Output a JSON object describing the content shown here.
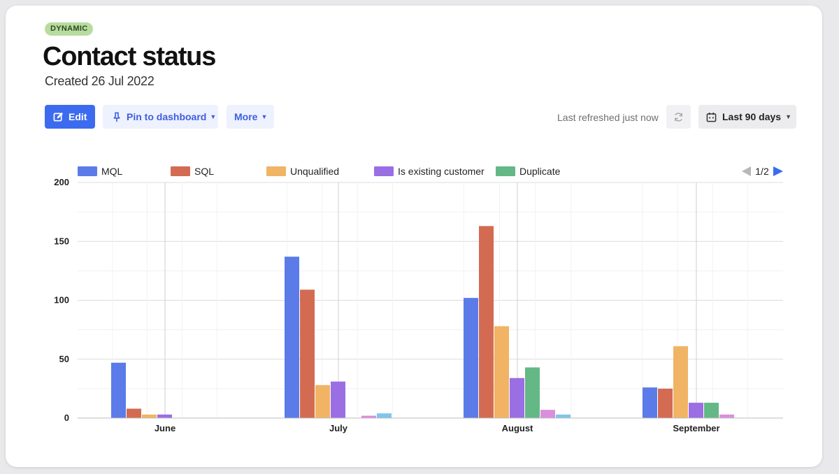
{
  "badge": "DYNAMIC",
  "title": "Contact status",
  "subtitle": "Created 26 Jul 2022",
  "toolbar": {
    "edit_label": "Edit",
    "pin_label": "Pin to dashboard",
    "more_label": "More",
    "refreshed_label": "Last refreshed just now",
    "date_range_label": "Last 90 days"
  },
  "legend": {
    "page": "1/2"
  },
  "chart_data": {
    "type": "bar",
    "categories": [
      "June",
      "July",
      "August",
      "September"
    ],
    "ylim": [
      0,
      200
    ],
    "yticks": [
      0,
      50,
      100,
      150,
      200
    ],
    "grid": true,
    "legend_position": "top",
    "series": [
      {
        "name": "MQL",
        "color": "#5b7be9",
        "values": [
          47,
          137,
          102,
          26
        ]
      },
      {
        "name": "SQL",
        "color": "#d36b52",
        "values": [
          8,
          109,
          163,
          25
        ]
      },
      {
        "name": "Unqualified",
        "color": "#f0b464",
        "values": [
          3,
          28,
          78,
          61
        ]
      },
      {
        "name": "Is existing customer",
        "color": "#9b6ee3",
        "values": [
          3,
          31,
          34,
          13
        ]
      },
      {
        "name": "Duplicate",
        "color": "#63b886",
        "values": [
          0,
          0,
          43,
          13
        ]
      },
      {
        "color": "#d98fdc",
        "values": [
          0,
          2,
          7,
          3
        ]
      },
      {
        "color": "#7ec6ea",
        "values": [
          0,
          4,
          3,
          0
        ]
      }
    ]
  }
}
